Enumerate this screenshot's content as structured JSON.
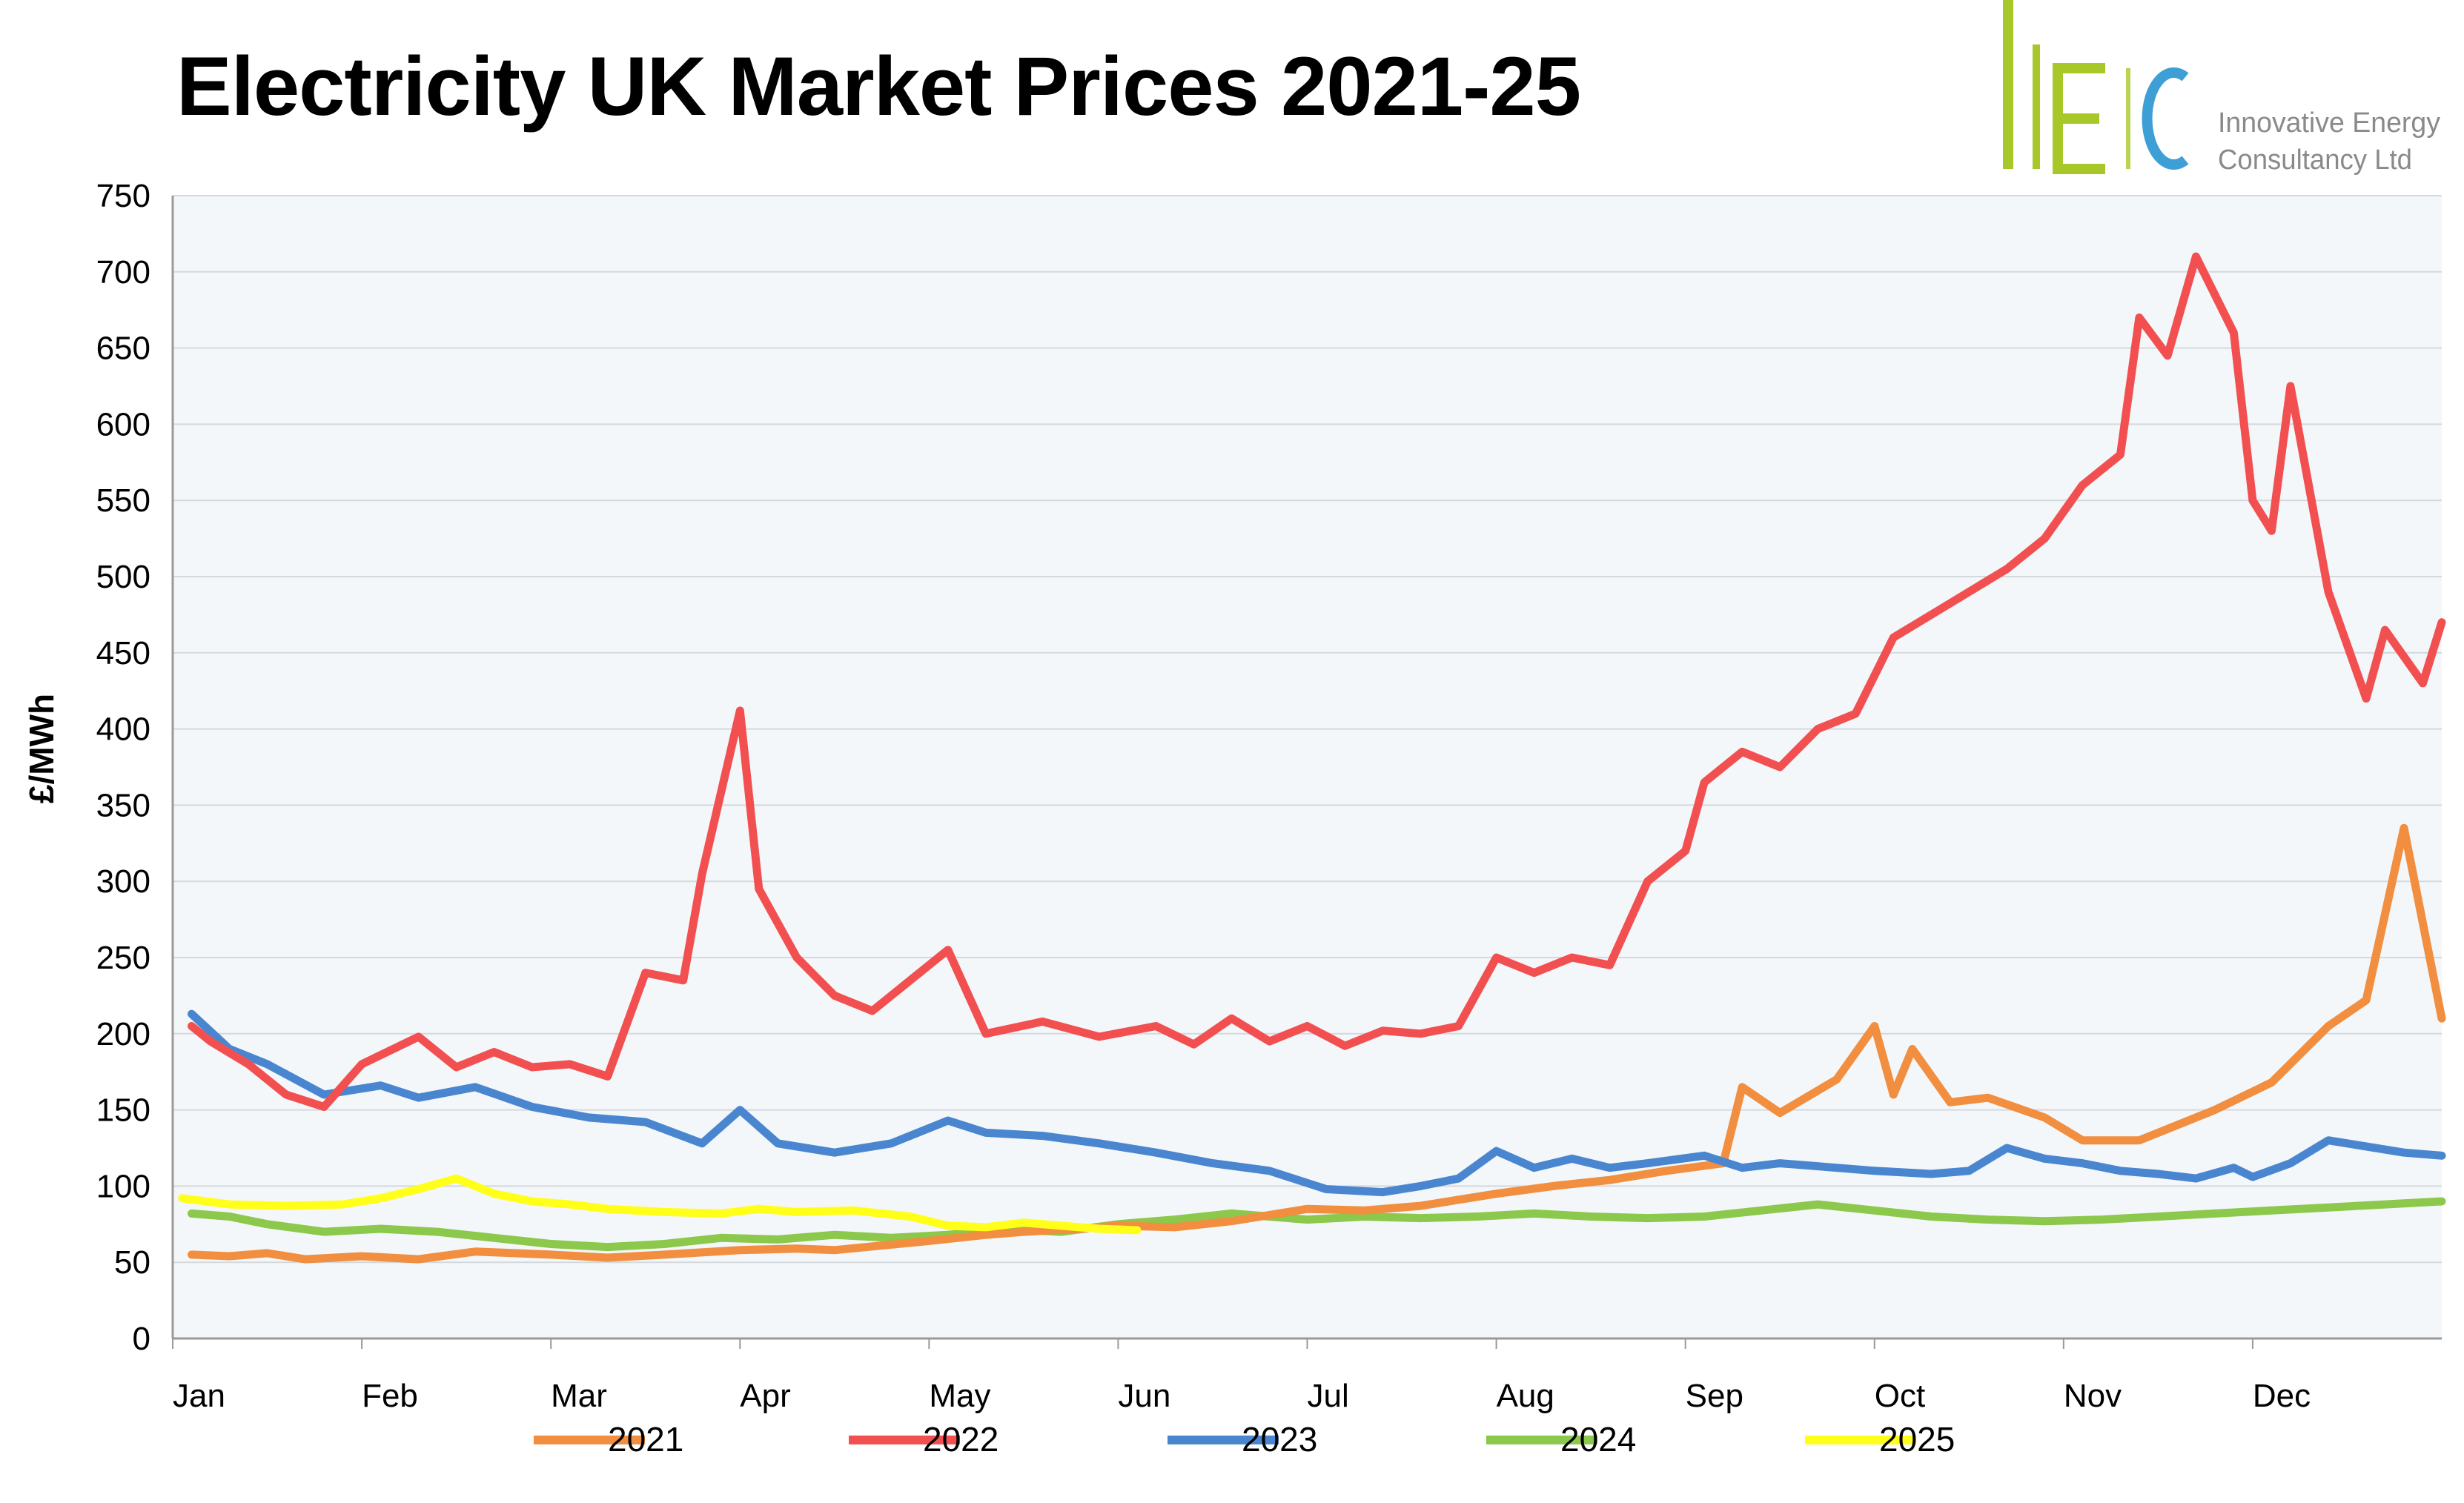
{
  "chart_data": {
    "type": "line",
    "title": "Electricity UK Market Prices 2021-25",
    "xlabel": "",
    "ylabel": "£/MWh",
    "ylim": [
      0,
      750
    ],
    "yticks": [
      0,
      50,
      100,
      150,
      200,
      250,
      300,
      350,
      400,
      450,
      500,
      550,
      600,
      650,
      700,
      750
    ],
    "categories": [
      "Jan",
      "Feb",
      "Mar",
      "Apr",
      "May",
      "Jun",
      "Jul",
      "Aug",
      "Sep",
      "Oct",
      "Nov",
      "Dec"
    ],
    "grid": true,
    "legend_position": "bottom",
    "series": [
      {
        "name": "2021",
        "color": "#F28E3F",
        "points": [
          [
            0.1,
            55
          ],
          [
            0.3,
            54
          ],
          [
            0.5,
            56
          ],
          [
            0.7,
            52
          ],
          [
            1.0,
            54
          ],
          [
            1.3,
            52
          ],
          [
            1.6,
            57
          ],
          [
            2.0,
            55
          ],
          [
            2.3,
            53
          ],
          [
            2.6,
            55
          ],
          [
            3.0,
            58
          ],
          [
            3.3,
            59
          ],
          [
            3.5,
            58
          ],
          [
            4.0,
            64
          ],
          [
            4.3,
            68
          ],
          [
            4.5,
            70
          ],
          [
            4.8,
            72
          ],
          [
            5.0,
            74
          ],
          [
            5.3,
            73
          ],
          [
            5.6,
            77
          ],
          [
            6.0,
            85
          ],
          [
            6.3,
            84
          ],
          [
            6.6,
            87
          ],
          [
            7.0,
            95
          ],
          [
            7.3,
            100
          ],
          [
            7.6,
            104
          ],
          [
            7.9,
            110
          ],
          [
            8.2,
            115
          ],
          [
            8.3,
            165
          ],
          [
            8.5,
            148
          ],
          [
            8.8,
            170
          ],
          [
            9.0,
            205
          ],
          [
            9.1,
            160
          ],
          [
            9.2,
            190
          ],
          [
            9.4,
            155
          ],
          [
            9.6,
            158
          ],
          [
            9.9,
            145
          ],
          [
            10.1,
            130
          ],
          [
            10.4,
            130
          ],
          [
            10.8,
            150
          ],
          [
            11.1,
            168
          ],
          [
            11.4,
            205
          ],
          [
            11.6,
            222
          ],
          [
            11.8,
            335
          ],
          [
            12.0,
            210
          ]
        ]
      },
      {
        "name": "2022",
        "color": "#F25050",
        "points": [
          [
            0.1,
            205
          ],
          [
            0.2,
            195
          ],
          [
            0.4,
            180
          ],
          [
            0.6,
            160
          ],
          [
            0.8,
            152
          ],
          [
            1.0,
            180
          ],
          [
            1.3,
            198
          ],
          [
            1.5,
            178
          ],
          [
            1.7,
            188
          ],
          [
            1.9,
            178
          ],
          [
            2.1,
            180
          ],
          [
            2.3,
            172
          ],
          [
            2.5,
            240
          ],
          [
            2.7,
            235
          ],
          [
            2.8,
            305
          ],
          [
            3.0,
            412
          ],
          [
            3.1,
            295
          ],
          [
            3.3,
            250
          ],
          [
            3.5,
            225
          ],
          [
            3.7,
            215
          ],
          [
            3.9,
            235
          ],
          [
            4.1,
            255
          ],
          [
            4.3,
            200
          ],
          [
            4.6,
            208
          ],
          [
            4.9,
            198
          ],
          [
            5.2,
            205
          ],
          [
            5.4,
            193
          ],
          [
            5.6,
            210
          ],
          [
            5.8,
            195
          ],
          [
            6.0,
            205
          ],
          [
            6.2,
            192
          ],
          [
            6.4,
            202
          ],
          [
            6.6,
            200
          ],
          [
            6.8,
            205
          ],
          [
            7.0,
            250
          ],
          [
            7.2,
            240
          ],
          [
            7.4,
            250
          ],
          [
            7.6,
            245
          ],
          [
            7.8,
            300
          ],
          [
            8.0,
            320
          ],
          [
            8.1,
            365
          ],
          [
            8.3,
            385
          ],
          [
            8.5,
            375
          ],
          [
            8.7,
            400
          ],
          [
            8.9,
            410
          ],
          [
            9.1,
            460
          ],
          [
            9.3,
            475
          ],
          [
            9.5,
            490
          ],
          [
            9.7,
            505
          ],
          [
            9.9,
            525
          ],
          [
            10.1,
            560
          ],
          [
            10.3,
            580
          ],
          [
            10.4,
            670
          ],
          [
            10.55,
            645
          ],
          [
            10.7,
            710
          ],
          [
            10.9,
            660
          ],
          [
            11.0,
            550
          ],
          [
            11.1,
            530
          ],
          [
            11.2,
            625
          ],
          [
            11.4,
            490
          ],
          [
            11.6,
            420
          ],
          [
            11.7,
            465
          ],
          [
            11.9,
            430
          ],
          [
            12.0,
            470
          ]
        ]
      },
      {
        "name": "2023",
        "color": "#4A86D0",
        "points": [
          [
            0.1,
            213
          ],
          [
            0.3,
            190
          ],
          [
            0.5,
            180
          ],
          [
            0.8,
            160
          ],
          [
            1.1,
            166
          ],
          [
            1.3,
            158
          ],
          [
            1.6,
            165
          ],
          [
            1.9,
            152
          ],
          [
            2.2,
            145
          ],
          [
            2.5,
            142
          ],
          [
            2.8,
            128
          ],
          [
            3.0,
            150
          ],
          [
            3.2,
            128
          ],
          [
            3.5,
            122
          ],
          [
            3.8,
            128
          ],
          [
            4.1,
            143
          ],
          [
            4.3,
            135
          ],
          [
            4.6,
            133
          ],
          [
            4.9,
            128
          ],
          [
            5.2,
            122
          ],
          [
            5.5,
            115
          ],
          [
            5.8,
            110
          ],
          [
            6.1,
            98
          ],
          [
            6.4,
            96
          ],
          [
            6.6,
            100
          ],
          [
            6.8,
            105
          ],
          [
            7.0,
            123
          ],
          [
            7.2,
            112
          ],
          [
            7.4,
            118
          ],
          [
            7.6,
            112
          ],
          [
            7.8,
            115
          ],
          [
            8.1,
            120
          ],
          [
            8.3,
            112
          ],
          [
            8.5,
            115
          ],
          [
            8.8,
            112
          ],
          [
            9.0,
            110
          ],
          [
            9.3,
            108
          ],
          [
            9.5,
            110
          ],
          [
            9.7,
            125
          ],
          [
            9.9,
            118
          ],
          [
            10.1,
            115
          ],
          [
            10.3,
            110
          ],
          [
            10.5,
            108
          ],
          [
            10.7,
            105
          ],
          [
            10.9,
            112
          ],
          [
            11.0,
            106
          ],
          [
            11.2,
            115
          ],
          [
            11.4,
            130
          ],
          [
            11.6,
            126
          ],
          [
            11.8,
            122
          ],
          [
            12.0,
            120
          ]
        ]
      },
      {
        "name": "2024",
        "color": "#8CC84B",
        "points": [
          [
            0.1,
            82
          ],
          [
            0.3,
            80
          ],
          [
            0.5,
            75
          ],
          [
            0.8,
            70
          ],
          [
            1.1,
            72
          ],
          [
            1.4,
            70
          ],
          [
            1.7,
            66
          ],
          [
            2.0,
            62
          ],
          [
            2.3,
            60
          ],
          [
            2.6,
            62
          ],
          [
            2.9,
            66
          ],
          [
            3.2,
            65
          ],
          [
            3.5,
            68
          ],
          [
            3.8,
            66
          ],
          [
            4.1,
            68
          ],
          [
            4.4,
            72
          ],
          [
            4.7,
            70
          ],
          [
            5.0,
            75
          ],
          [
            5.3,
            78
          ],
          [
            5.6,
            82
          ],
          [
            5.8,
            80
          ],
          [
            6.0,
            78
          ],
          [
            6.3,
            80
          ],
          [
            6.6,
            79
          ],
          [
            6.9,
            80
          ],
          [
            7.2,
            82
          ],
          [
            7.5,
            80
          ],
          [
            7.8,
            79
          ],
          [
            8.1,
            80
          ],
          [
            8.4,
            84
          ],
          [
            8.7,
            88
          ],
          [
            9.0,
            84
          ],
          [
            9.3,
            80
          ],
          [
            9.6,
            78
          ],
          [
            9.9,
            77
          ],
          [
            10.2,
            78
          ],
          [
            10.5,
            80
          ],
          [
            10.8,
            82
          ],
          [
            11.1,
            84
          ],
          [
            11.4,
            86
          ],
          [
            11.7,
            88
          ],
          [
            12.0,
            90
          ]
        ]
      },
      {
        "name": "2025",
        "color": "#FFFF1A",
        "points": [
          [
            0.05,
            92
          ],
          [
            0.3,
            88
          ],
          [
            0.6,
            87
          ],
          [
            0.9,
            88
          ],
          [
            1.1,
            92
          ],
          [
            1.3,
            98
          ],
          [
            1.5,
            105
          ],
          [
            1.7,
            95
          ],
          [
            1.9,
            90
          ],
          [
            2.1,
            88
          ],
          [
            2.3,
            85
          ],
          [
            2.6,
            83
          ],
          [
            2.9,
            82
          ],
          [
            3.1,
            85
          ],
          [
            3.3,
            83
          ],
          [
            3.6,
            84
          ],
          [
            3.9,
            80
          ],
          [
            4.1,
            74
          ],
          [
            4.3,
            73
          ],
          [
            4.5,
            76
          ],
          [
            4.7,
            74
          ],
          [
            4.9,
            72
          ],
          [
            5.1,
            71
          ]
        ]
      }
    ]
  },
  "logo": {
    "initials": [
      "I",
      "E",
      "C"
    ],
    "company_line1": "Innovative Energy",
    "company_line2": "Consultancy Ltd",
    "colors": {
      "bars": "#A8C82A",
      "c": "#3E9ED6",
      "text": "#8A8A8A"
    }
  }
}
